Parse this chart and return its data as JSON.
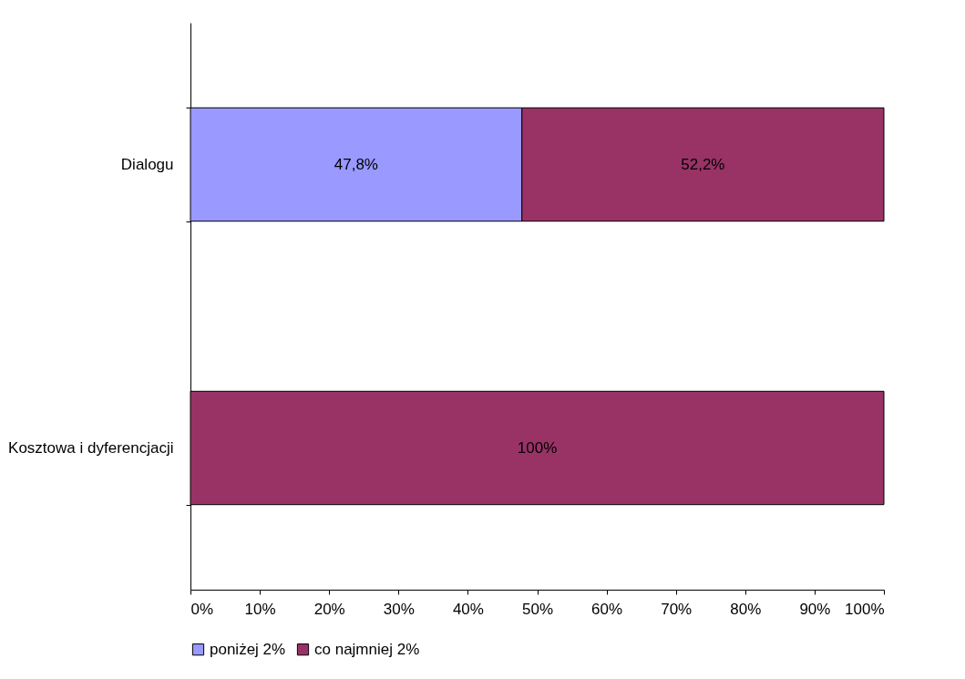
{
  "chart_data": {
    "type": "bar",
    "orientation": "horizontal",
    "stacked": true,
    "categories": [
      "Dialogu",
      "Kosztowa i dyferencjacji"
    ],
    "series": [
      {
        "name": "poniżej 2%",
        "color": "#9999ff",
        "values": [
          47.8,
          null
        ],
        "value_labels": [
          "47,8%",
          null
        ]
      },
      {
        "name": "co najmniej 2%",
        "color": "#993366",
        "values": [
          52.2,
          100
        ],
        "value_labels": [
          "52,2%",
          "100%"
        ]
      }
    ],
    "xlim": [
      0,
      100
    ],
    "xticks": [
      {
        "value": 0,
        "label": "0%"
      },
      {
        "value": 10,
        "label": "10%"
      },
      {
        "value": 20,
        "label": "20%"
      },
      {
        "value": 30,
        "label": "30%"
      },
      {
        "value": 40,
        "label": "40%"
      },
      {
        "value": 50,
        "label": "50%"
      },
      {
        "value": 60,
        "label": "60%"
      },
      {
        "value": 70,
        "label": "70%"
      },
      {
        "value": 80,
        "label": "80%"
      },
      {
        "value": 90,
        "label": "90%"
      },
      {
        "value": 100,
        "label": "100%"
      }
    ],
    "grid": false,
    "legend": "bottom"
  }
}
